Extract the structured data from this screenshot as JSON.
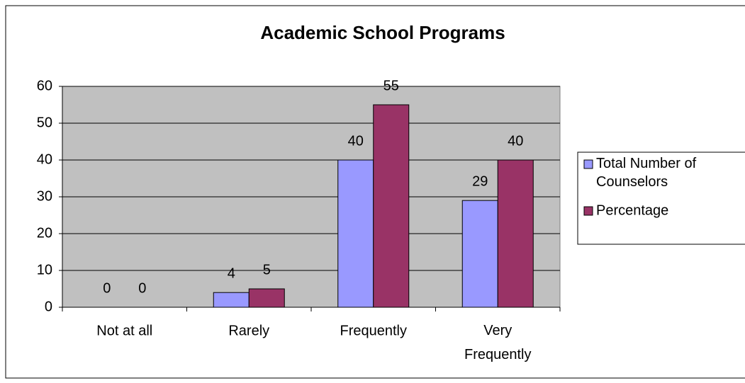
{
  "chart_data": {
    "type": "bar",
    "title": "Academic School Programs",
    "categories": [
      "Not at all",
      "Rarely",
      "Frequently",
      "Very Frequently"
    ],
    "series": [
      {
        "name": "Total Number of Counselors",
        "color": "#9999ff",
        "values": [
          0,
          4,
          40,
          29
        ]
      },
      {
        "name": "Percentage",
        "color": "#993366",
        "values": [
          0,
          5,
          55,
          40
        ]
      }
    ],
    "ylim": [
      0,
      60
    ],
    "yticks": [
      0,
      10,
      20,
      30,
      40,
      50,
      60
    ],
    "grid": true,
    "legend": "right"
  }
}
